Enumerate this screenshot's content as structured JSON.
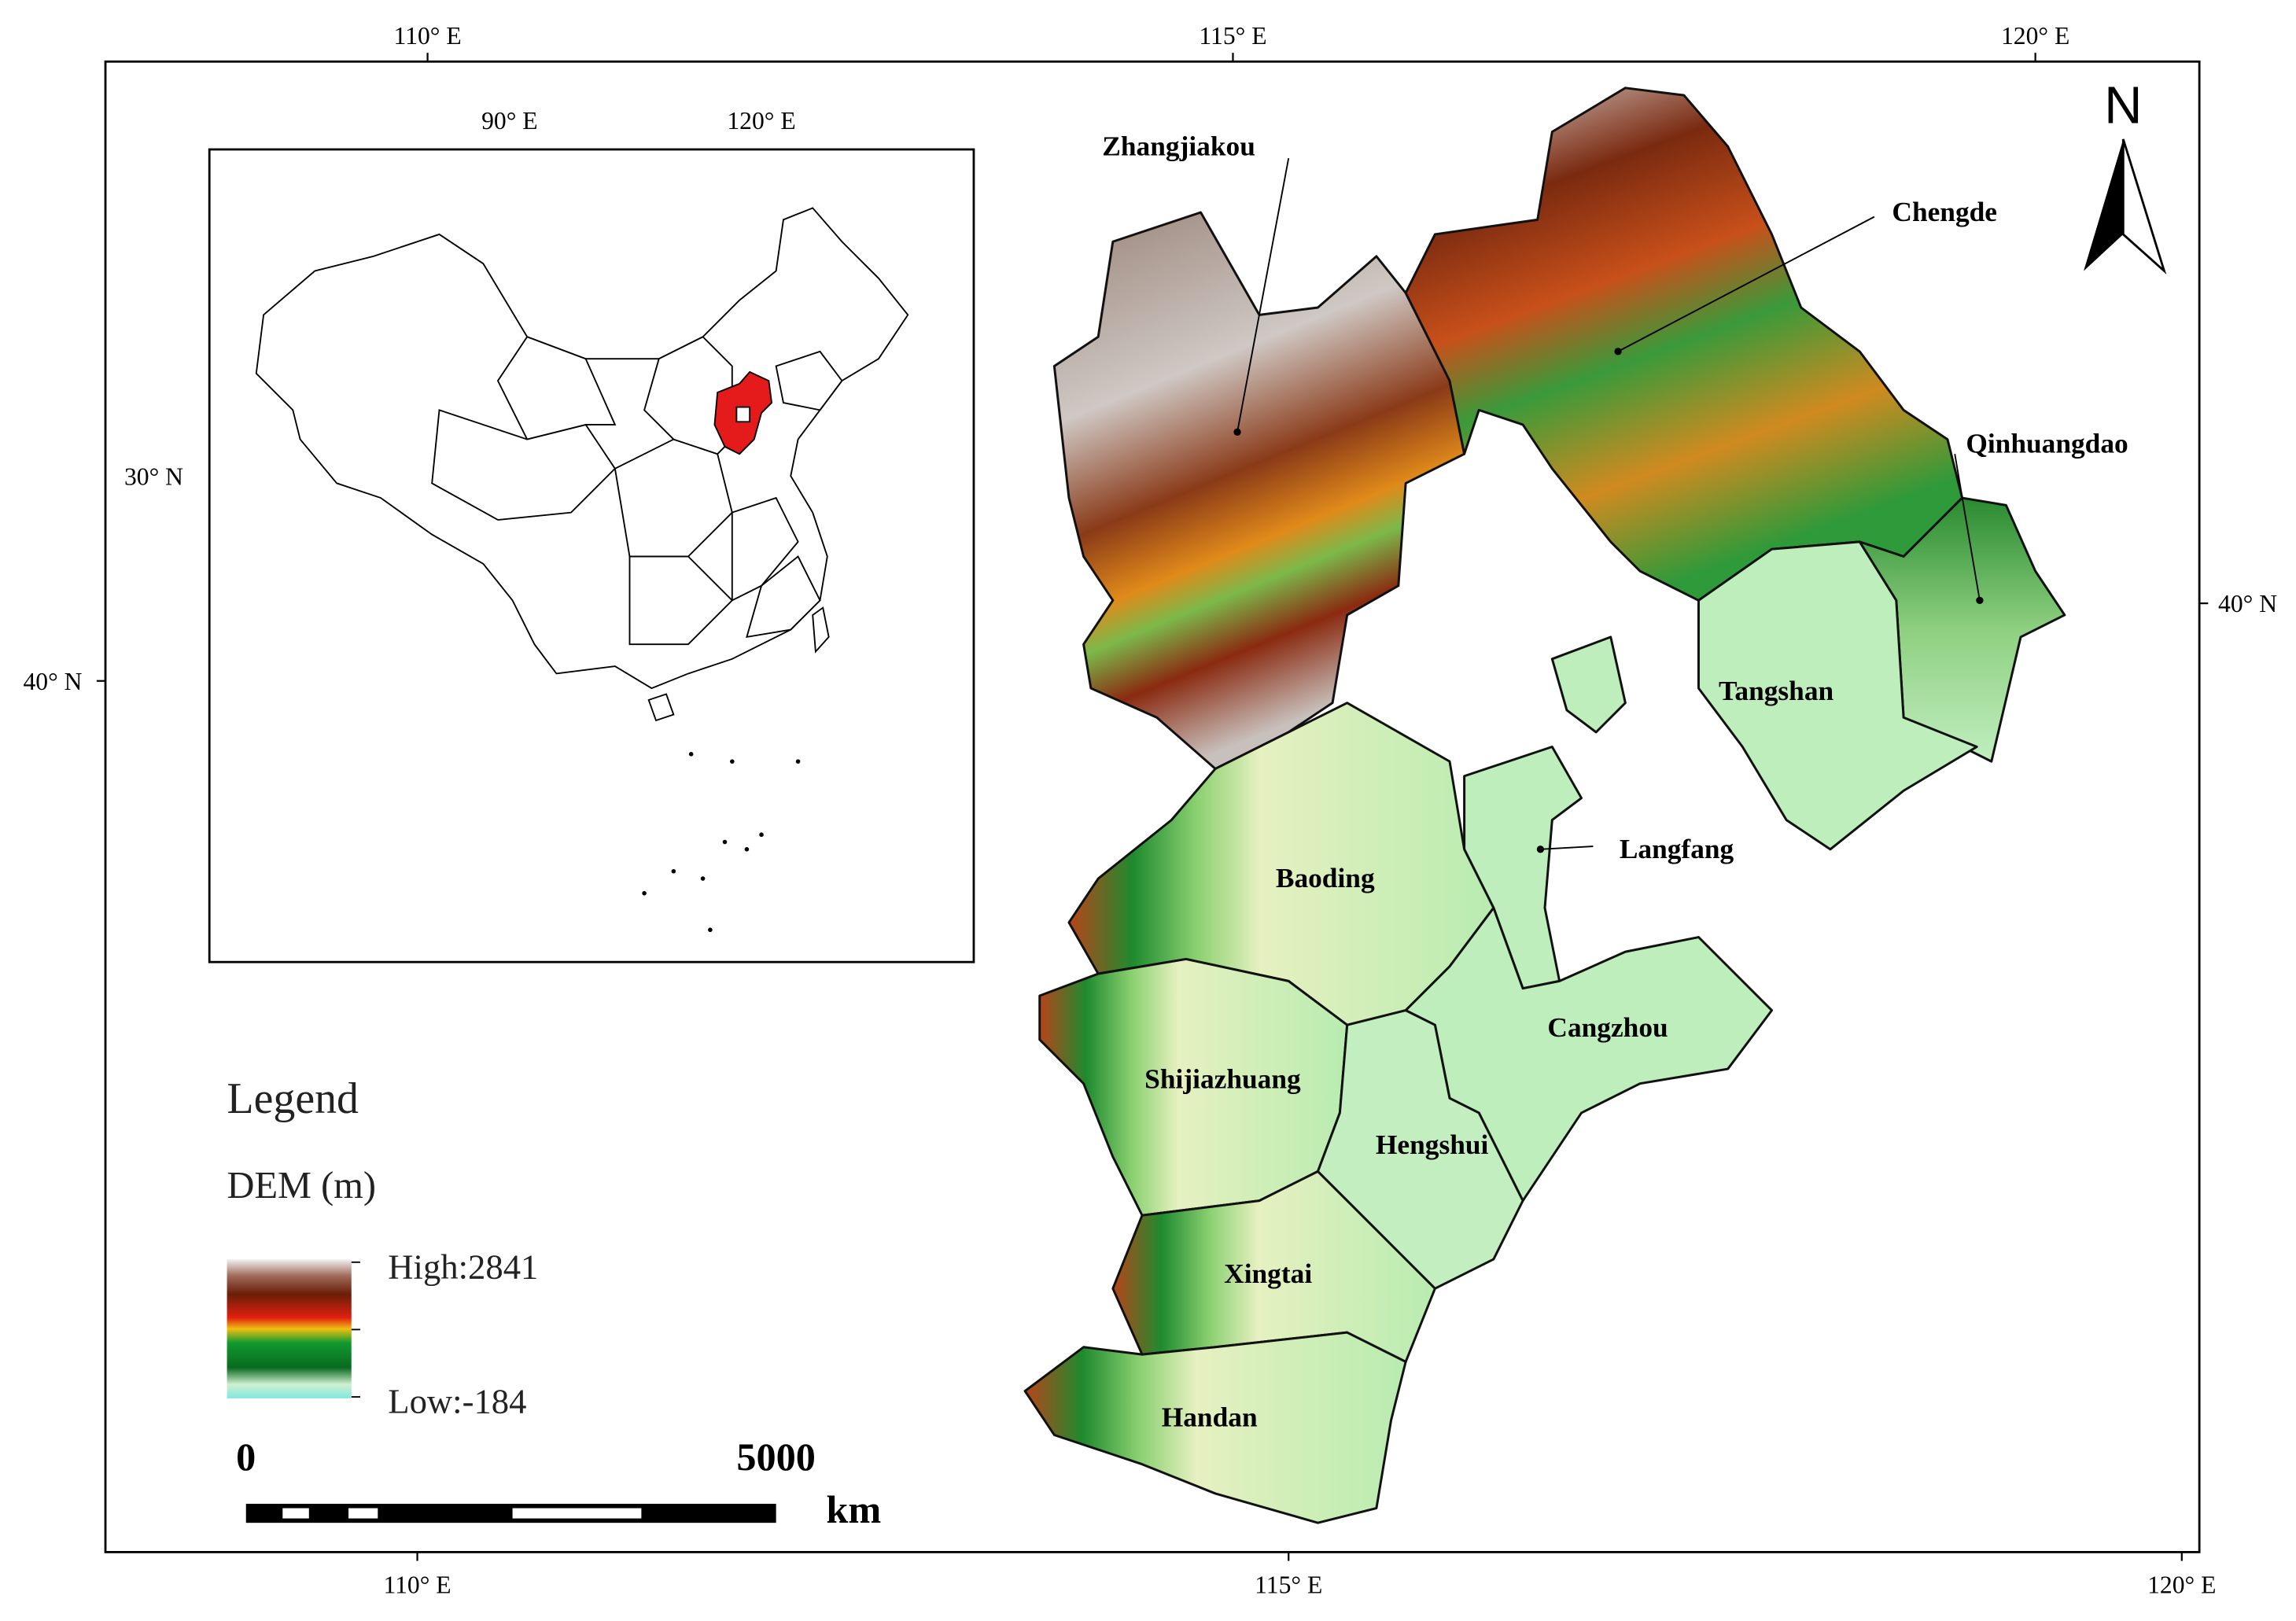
{
  "frame_labels": {
    "top": [
      "110° E",
      "115° E",
      "120° E"
    ],
    "bottom": [
      "110° E",
      "115° E",
      "120° E"
    ],
    "left": [
      "30° N",
      "40° N"
    ],
    "right": [
      "40° N"
    ]
  },
  "inset": {
    "labels": [
      "90° E",
      "120° E"
    ]
  },
  "north_arrow": "N",
  "cities": [
    "Zhangjiakou",
    "Chengde",
    "Qinhuangdao",
    "Tangshan",
    "Langfang",
    "Baoding",
    "Cangzhou",
    "Shijiazhuang",
    "Hengshui",
    "Xingtai",
    "Handan"
  ],
  "legend": {
    "title": "Legend",
    "subtitle": "DEM (m)",
    "high": "High:2841",
    "low": "Low:-184"
  },
  "scale_bar": {
    "start": "0",
    "end": "5000",
    "unit": "km"
  }
}
